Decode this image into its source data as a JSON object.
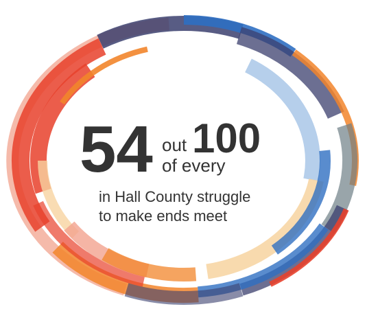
{
  "headline": {
    "number": "54",
    "connector_top": "out",
    "total": "100",
    "connector_bottom": "of every"
  },
  "caption": {
    "line1": "in Hall County struggle",
    "line2": "to make ends meet"
  },
  "colors": {
    "red": "#e8412c",
    "salmon": "#f2a38e",
    "orange": "#f2852b",
    "peach": "#f7d3a0",
    "navy": "#3b3f6e",
    "blue": "#2f6fc2",
    "light_blue": "#a9c7e8",
    "gray_teal": "#6e7f86",
    "text": "#333333"
  }
}
